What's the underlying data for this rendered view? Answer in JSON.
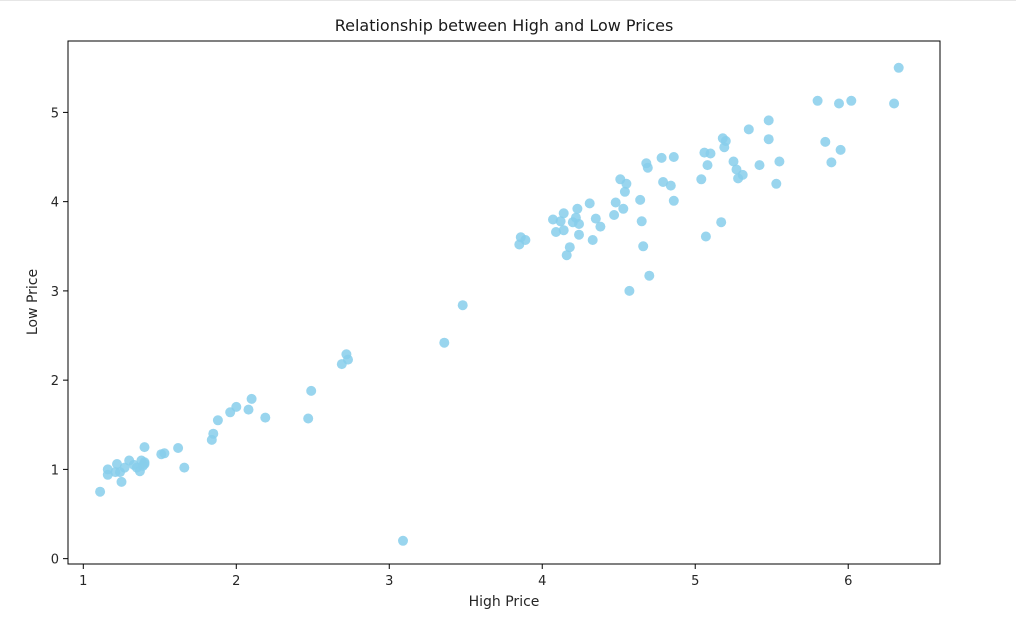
{
  "chart_data": {
    "type": "scatter",
    "title": "Relationship between High and Low Prices",
    "xlabel": "High Price",
    "ylabel": "Low Price",
    "xlim": [
      0.9,
      6.6
    ],
    "ylim": [
      -0.06,
      5.8
    ],
    "xticks": [
      1,
      2,
      3,
      4,
      5,
      6
    ],
    "yticks": [
      0,
      1,
      2,
      3,
      4,
      5
    ],
    "grid": false,
    "marker_color": "#87ceeb",
    "points": [
      [
        1.11,
        0.75
      ],
      [
        1.16,
        0.94
      ],
      [
        1.16,
        1.0
      ],
      [
        1.21,
        0.97
      ],
      [
        1.22,
        1.06
      ],
      [
        1.24,
        0.97
      ],
      [
        1.25,
        0.86
      ],
      [
        1.27,
        1.02
      ],
      [
        1.3,
        1.1
      ],
      [
        1.33,
        1.05
      ],
      [
        1.35,
        1.02
      ],
      [
        1.37,
        0.98
      ],
      [
        1.38,
        1.1
      ],
      [
        1.39,
        1.04
      ],
      [
        1.4,
        1.06
      ],
      [
        1.4,
        1.08
      ],
      [
        1.4,
        1.25
      ],
      [
        1.51,
        1.17
      ],
      [
        1.53,
        1.18
      ],
      [
        1.62,
        1.24
      ],
      [
        1.66,
        1.02
      ],
      [
        1.84,
        1.33
      ],
      [
        1.85,
        1.4
      ],
      [
        1.88,
        1.55
      ],
      [
        1.96,
        1.64
      ],
      [
        2.0,
        1.7
      ],
      [
        2.08,
        1.67
      ],
      [
        2.1,
        1.79
      ],
      [
        2.19,
        1.58
      ],
      [
        2.47,
        1.57
      ],
      [
        2.49,
        1.88
      ],
      [
        2.69,
        2.18
      ],
      [
        2.72,
        2.29
      ],
      [
        2.73,
        2.23
      ],
      [
        3.09,
        0.2
      ],
      [
        3.36,
        2.42
      ],
      [
        3.48,
        2.84
      ],
      [
        3.85,
        3.52
      ],
      [
        3.86,
        3.6
      ],
      [
        3.89,
        3.57
      ],
      [
        4.07,
        3.8
      ],
      [
        4.09,
        3.66
      ],
      [
        4.12,
        3.78
      ],
      [
        4.14,
        3.87
      ],
      [
        4.14,
        3.68
      ],
      [
        4.16,
        3.4
      ],
      [
        4.18,
        3.49
      ],
      [
        4.2,
        3.77
      ],
      [
        4.22,
        3.82
      ],
      [
        4.23,
        3.92
      ],
      [
        4.24,
        3.75
      ],
      [
        4.24,
        3.63
      ],
      [
        4.31,
        3.98
      ],
      [
        4.33,
        3.57
      ],
      [
        4.35,
        3.81
      ],
      [
        4.38,
        3.72
      ],
      [
        4.47,
        3.85
      ],
      [
        4.48,
        3.99
      ],
      [
        4.51,
        4.25
      ],
      [
        4.53,
        3.92
      ],
      [
        4.54,
        4.11
      ],
      [
        4.55,
        4.2
      ],
      [
        4.57,
        3.0
      ],
      [
        4.64,
        4.02
      ],
      [
        4.65,
        3.78
      ],
      [
        4.66,
        3.5
      ],
      [
        4.68,
        4.43
      ],
      [
        4.69,
        4.38
      ],
      [
        4.7,
        3.17
      ],
      [
        4.78,
        4.49
      ],
      [
        4.79,
        4.22
      ],
      [
        4.84,
        4.18
      ],
      [
        4.86,
        4.5
      ],
      [
        4.86,
        4.01
      ],
      [
        5.04,
        4.25
      ],
      [
        5.06,
        4.55
      ],
      [
        5.07,
        3.61
      ],
      [
        5.08,
        4.41
      ],
      [
        5.1,
        4.54
      ],
      [
        5.17,
        3.77
      ],
      [
        5.18,
        4.71
      ],
      [
        5.19,
        4.61
      ],
      [
        5.2,
        4.68
      ],
      [
        5.25,
        4.45
      ],
      [
        5.27,
        4.36
      ],
      [
        5.28,
        4.26
      ],
      [
        5.31,
        4.3
      ],
      [
        5.35,
        4.81
      ],
      [
        5.42,
        4.41
      ],
      [
        5.48,
        4.91
      ],
      [
        5.48,
        4.7
      ],
      [
        5.53,
        4.2
      ],
      [
        5.55,
        4.45
      ],
      [
        5.8,
        5.13
      ],
      [
        5.85,
        4.67
      ],
      [
        5.89,
        4.44
      ],
      [
        5.94,
        5.1
      ],
      [
        5.95,
        4.58
      ],
      [
        6.02,
        5.13
      ],
      [
        6.3,
        5.1
      ],
      [
        6.33,
        5.5
      ]
    ]
  }
}
